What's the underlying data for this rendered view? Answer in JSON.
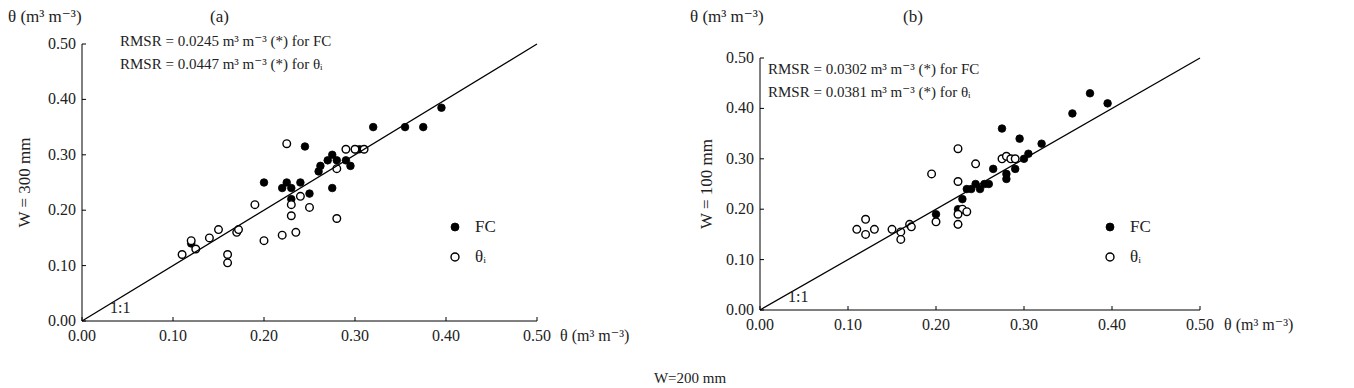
{
  "chart_data": [
    {
      "type": "scatter",
      "title": "(a)",
      "y_unit_label": "θ (m³ m⁻³)",
      "y_label": "W = 300 mm",
      "x_label": "θ (m³ m⁻³)",
      "annotations": [
        "RMSR = 0.0245 m³ m⁻³ (*) for FC",
        "RMSR = 0.0447 m³ m⁻³ (*) for θᵢ"
      ],
      "legend": "lower right",
      "xlim": [
        0,
        0.5
      ],
      "ylim": [
        0,
        0.5
      ],
      "xticks": [
        {
          "value": 0,
          "label": "0.00"
        },
        {
          "value": 0.1,
          "label": "0.10"
        },
        {
          "value": 0.2,
          "label": "0.20"
        },
        {
          "value": 0.3,
          "label": "0.30"
        },
        {
          "value": 0.4,
          "label": "0.40"
        },
        {
          "value": 0.5,
          "label": "0.50"
        }
      ],
      "yticks": [
        {
          "value": 0,
          "label": "0.00"
        },
        {
          "value": 0.1,
          "label": "0.10"
        },
        {
          "value": 0.2,
          "label": "0.20"
        },
        {
          "value": 0.3,
          "label": "0.30"
        },
        {
          "value": 0.4,
          "label": "0.40"
        },
        {
          "value": 0.5,
          "label": "0.50"
        }
      ],
      "series": [
        {
          "name": "FC",
          "color": "#000000",
          "marker": "filled-circle",
          "x": [
            0.12,
            0.2,
            0.22,
            0.225,
            0.23,
            0.24,
            0.245,
            0.25,
            0.26,
            0.262,
            0.275,
            0.275,
            0.28,
            0.29,
            0.295,
            0.3,
            0.305,
            0.32,
            0.355,
            0.375,
            0.395,
            0.23,
            0.27
          ],
          "values": [
            0.14,
            0.25,
            0.24,
            0.25,
            0.24,
            0.25,
            0.315,
            0.23,
            0.27,
            0.28,
            0.3,
            0.24,
            0.29,
            0.29,
            0.28,
            0.31,
            0.31,
            0.35,
            0.35,
            0.35,
            0.385,
            0.22,
            0.29
          ]
        },
        {
          "name": "θᵢ",
          "color": "#000000",
          "marker": "open-circle",
          "x": [
            0.11,
            0.12,
            0.125,
            0.14,
            0.15,
            0.16,
            0.16,
            0.17,
            0.172,
            0.19,
            0.2,
            0.22,
            0.225,
            0.23,
            0.23,
            0.235,
            0.24,
            0.25,
            0.28,
            0.28,
            0.29,
            0.3,
            0.31
          ],
          "values": [
            0.12,
            0.145,
            0.13,
            0.15,
            0.165,
            0.105,
            0.12,
            0.16,
            0.165,
            0.21,
            0.145,
            0.155,
            0.32,
            0.21,
            0.19,
            0.16,
            0.225,
            0.205,
            0.185,
            0.275,
            0.31,
            0.31,
            0.31
          ]
        },
        {
          "name": "1:1",
          "type": "line",
          "color": "#000000",
          "line_style": "solid",
          "x": [
            0,
            0.5
          ],
          "values": [
            0,
            0.5
          ]
        }
      ]
    },
    {
      "type": "scatter",
      "title": "(b)",
      "y_unit_label": "θ (m³ m⁻³)",
      "y_label": "W = 100 mm",
      "x_label": "θ (m³ m⁻³)",
      "annotations": [
        "RMSR = 0.0302 m³ m⁻³ (*) for FC",
        "RMSR = 0.0381 m³ m⁻³ (*) for θᵢ"
      ],
      "legend": "lower right",
      "xlim": [
        0,
        0.5
      ],
      "ylim": [
        0,
        0.5
      ],
      "xticks": [
        {
          "value": 0,
          "label": "0.00"
        },
        {
          "value": 0.1,
          "label": "0.10"
        },
        {
          "value": 0.2,
          "label": "0.20"
        },
        {
          "value": 0.3,
          "label": "0.30"
        },
        {
          "value": 0.4,
          "label": "0.40"
        },
        {
          "value": 0.5,
          "label": "0.50"
        }
      ],
      "yticks": [
        {
          "value": 0,
          "label": "0.00"
        },
        {
          "value": 0.1,
          "label": "0.10"
        },
        {
          "value": 0.2,
          "label": "0.20"
        },
        {
          "value": 0.3,
          "label": "0.30"
        },
        {
          "value": 0.4,
          "label": "0.40"
        },
        {
          "value": 0.5,
          "label": "0.50"
        }
      ],
      "series": [
        {
          "name": "FC",
          "color": "#000000",
          "marker": "filled-circle",
          "x": [
            0.2,
            0.225,
            0.225,
            0.23,
            0.235,
            0.24,
            0.25,
            0.255,
            0.26,
            0.265,
            0.275,
            0.28,
            0.28,
            0.29,
            0.295,
            0.3,
            0.305,
            0.32,
            0.355,
            0.375,
            0.395,
            0.245
          ],
          "values": [
            0.19,
            0.17,
            0.2,
            0.22,
            0.24,
            0.24,
            0.24,
            0.25,
            0.25,
            0.28,
            0.36,
            0.27,
            0.26,
            0.28,
            0.34,
            0.3,
            0.31,
            0.33,
            0.39,
            0.43,
            0.41,
            0.25
          ]
        },
        {
          "name": "θᵢ",
          "color": "#000000",
          "marker": "open-circle",
          "x": [
            0.11,
            0.12,
            0.12,
            0.13,
            0.15,
            0.16,
            0.16,
            0.17,
            0.172,
            0.195,
            0.2,
            0.225,
            0.225,
            0.23,
            0.235,
            0.225,
            0.245,
            0.275,
            0.28,
            0.285,
            0.29,
            0.225
          ],
          "values": [
            0.16,
            0.18,
            0.15,
            0.16,
            0.16,
            0.155,
            0.14,
            0.17,
            0.165,
            0.27,
            0.175,
            0.32,
            0.255,
            0.2,
            0.195,
            0.19,
            0.29,
            0.3,
            0.305,
            0.3,
            0.3,
            0.17
          ]
        },
        {
          "name": "1:1",
          "type": "line",
          "color": "#000000",
          "line_style": "solid",
          "x": [
            0,
            0.5
          ],
          "values": [
            0,
            0.5
          ]
        }
      ]
    }
  ],
  "footer": "W=200 mm"
}
